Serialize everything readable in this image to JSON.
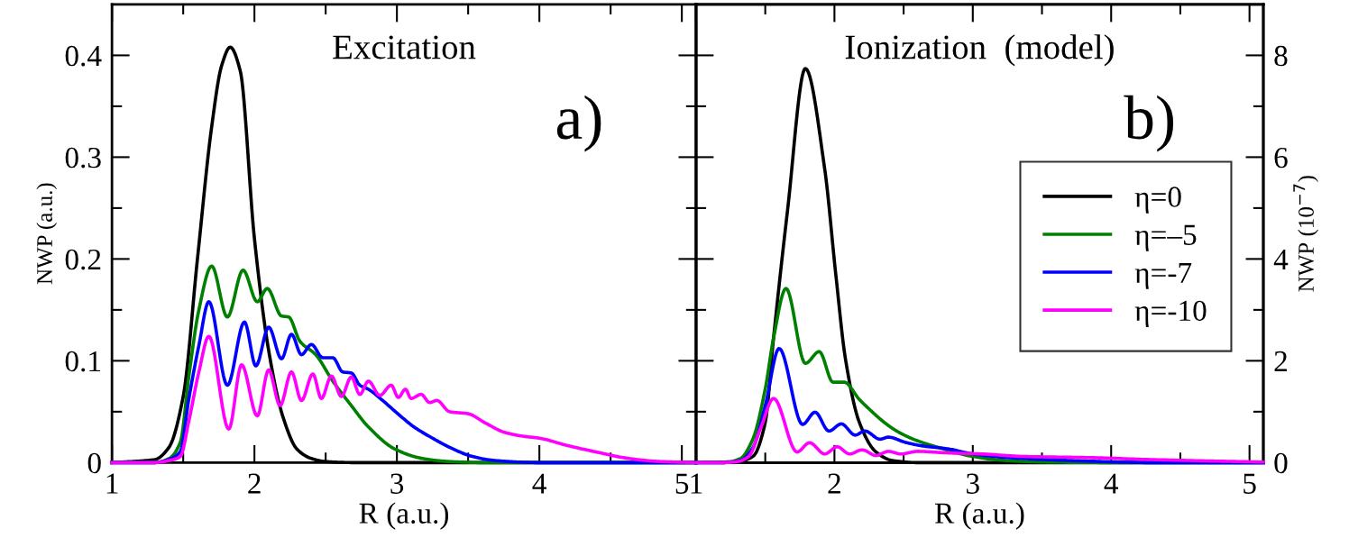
{
  "chart_data": [
    {
      "type": "line",
      "xlabel": "R (a.u.)",
      "ylabel": "NWP (a.u.)",
      "annotations": [
        "Excitation",
        "a)"
      ],
      "xlim": [
        1,
        5.1
      ],
      "xticks": [
        1,
        {
          "value": 1.5,
          "label": null
        },
        2,
        {
          "value": 2.5,
          "label": null
        },
        3,
        {
          "value": 3.5,
          "label": null
        },
        4,
        {
          "value": 4.5,
          "label": null
        },
        5
      ],
      "ylim": [
        0,
        0.45
      ],
      "yticks": [
        0,
        {
          "value": 0.05,
          "label": null
        },
        0.1,
        {
          "value": 0.15,
          "label": null
        },
        0.2,
        {
          "value": 0.25,
          "label": null
        },
        0.3,
        {
          "value": 0.35,
          "label": null
        },
        0.4
      ],
      "grid": false,
      "legend": false,
      "marker": "none",
      "line_style": "solid",
      "series": [
        {
          "color": "#000000",
          "x": [
            1,
            1.3,
            1.4,
            1.5,
            1.6,
            1.7,
            1.77,
            1.83,
            1.9,
            2.0,
            2.1,
            2.2,
            2.3,
            2.4,
            2.5,
            2.7,
            5.1
          ],
          "values": [
            0,
            0.003,
            0.015,
            0.065,
            0.2,
            0.33,
            0.39,
            0.408,
            0.385,
            0.22,
            0.11,
            0.045,
            0.013,
            0.004,
            0.001,
            0,
            0
          ]
        },
        {
          "color": "#008000",
          "x": [
            1,
            1.3,
            1.4,
            1.48,
            1.54,
            1.61,
            1.7,
            1.81,
            1.92,
            2.02,
            2.09,
            2.19,
            2.24,
            2.32,
            2.43,
            2.55,
            2.68,
            2.8,
            2.99,
            3.18,
            3.37,
            3.6,
            5.1
          ],
          "values": [
            0,
            0,
            0.004,
            0.02,
            0.085,
            0.15,
            0.193,
            0.143,
            0.189,
            0.158,
            0.171,
            0.144,
            0.143,
            0.119,
            0.106,
            0.08,
            0.056,
            0.035,
            0.013,
            0.004,
            0.001,
            0,
            0
          ]
        },
        {
          "color": "#0000ff",
          "x": [
            1,
            1.3,
            1.4,
            1.48,
            1.54,
            1.61,
            1.68,
            1.81,
            1.93,
            2.01,
            2.1,
            2.19,
            2.26,
            2.33,
            2.4,
            2.48,
            2.55,
            2.62,
            2.68,
            2.74,
            2.8,
            2.9,
            2.99,
            3.12,
            3.25,
            3.37,
            3.53,
            3.69,
            4.0,
            5.1
          ],
          "values": [
            0,
            0,
            0.003,
            0.011,
            0.063,
            0.115,
            0.158,
            0.076,
            0.138,
            0.095,
            0.133,
            0.102,
            0.126,
            0.106,
            0.116,
            0.103,
            0.103,
            0.089,
            0.088,
            0.076,
            0.072,
            0.061,
            0.05,
            0.035,
            0.024,
            0.015,
            0.006,
            0.002,
            0,
            0
          ]
        },
        {
          "color": "#ff00ff",
          "x": [
            1,
            1.3,
            1.4,
            1.48,
            1.54,
            1.61,
            1.68,
            1.82,
            1.91,
            2.02,
            2.1,
            2.18,
            2.26,
            2.33,
            2.41,
            2.47,
            2.54,
            2.61,
            2.68,
            2.74,
            2.8,
            2.88,
            2.96,
            3.01,
            3.06,
            3.1,
            3.17,
            3.23,
            3.28,
            3.37,
            3.5,
            3.62,
            3.75,
            3.88,
            4.0,
            4.19,
            4.38,
            4.63,
            4.85,
            5.1
          ],
          "values": [
            0,
            0,
            0.002,
            0.006,
            0.041,
            0.089,
            0.124,
            0.033,
            0.096,
            0.046,
            0.091,
            0.056,
            0.089,
            0.061,
            0.087,
            0.063,
            0.085,
            0.065,
            0.084,
            0.067,
            0.08,
            0.066,
            0.076,
            0.064,
            0.072,
            0.063,
            0.067,
            0.059,
            0.061,
            0.05,
            0.048,
            0.039,
            0.03,
            0.026,
            0.024,
            0.017,
            0.011,
            0.004,
            0.001,
            0
          ]
        }
      ]
    },
    {
      "type": "line",
      "xlabel": "R (a.u.)",
      "y2label": "NWP (10$^{−7}$)",
      "annotations": [
        "Ionization  (model)",
        "b)"
      ],
      "xlim": [
        1,
        5.1
      ],
      "xticks": [
        1,
        {
          "value": 1.5,
          "label": null
        },
        2,
        {
          "value": 2.5,
          "label": null
        },
        3,
        {
          "value": 3.5,
          "label": null
        },
        4,
        {
          "value": 4.5,
          "label": null
        },
        5
      ],
      "y2lim": [
        0,
        9
      ],
      "y2ticks": [
        0,
        {
          "value": 1,
          "label": null
        },
        2,
        {
          "value": 3,
          "label": null
        },
        4,
        {
          "value": 5,
          "label": null
        },
        6,
        {
          "value": 7,
          "label": null
        },
        8
      ],
      "grid": false,
      "legend": "right",
      "marker": "none",
      "line_style": "solid",
      "series": [
        {
          "name": "η=0",
          "axis": "y2",
          "color": "#000000",
          "x": [
            1,
            1.3,
            1.41,
            1.5,
            1.56,
            1.66,
            1.79,
            1.93,
            2.01,
            2.08,
            2.18,
            2.3,
            2.42,
            2.6,
            5.1
          ],
          "values": [
            0,
            0.02,
            0.12,
            0.79,
            2.45,
            4.93,
            7.74,
            5.76,
            3.69,
            2.03,
            0.79,
            0.21,
            0.04,
            0,
            0
          ]
        },
        {
          "name": "η=–5",
          "axis": "y2",
          "color": "#008000",
          "x": [
            1,
            1.2,
            1.32,
            1.41,
            1.5,
            1.56,
            1.65,
            1.79,
            1.89,
            1.99,
            2.07,
            2.18,
            2.24,
            2.36,
            2.45,
            2.57,
            2.76,
            3.0,
            3.24,
            3.52,
            4.0,
            5.1
          ],
          "values": [
            0,
            0,
            0.08,
            0.46,
            1.45,
            2.45,
            3.42,
            1.95,
            2.18,
            1.58,
            1.58,
            1.24,
            1.08,
            0.79,
            0.62,
            0.46,
            0.29,
            0.12,
            0.04,
            0.01,
            0,
            0
          ]
        },
        {
          "name": "η=-7",
          "axis": "y2",
          "color": "#0000ff",
          "x": [
            1,
            1.2,
            1.32,
            1.41,
            1.5,
            1.6,
            1.77,
            1.86,
            1.96,
            2.05,
            2.15,
            2.22,
            2.33,
            2.39,
            2.51,
            2.63,
            2.82,
            3.0,
            3.24,
            3.52,
            3.82,
            4.28,
            5.1
          ],
          "values": [
            0,
            0,
            0.04,
            0.29,
            1.12,
            2.24,
            0.75,
            0.99,
            0.62,
            0.76,
            0.54,
            0.62,
            0.46,
            0.5,
            0.4,
            0.33,
            0.27,
            0.17,
            0.1,
            0.06,
            0.03,
            0,
            0
          ]
        },
        {
          "name": "η=-10",
          "axis": "y2",
          "color": "#ff00ff",
          "x": [
            1,
            1.2,
            1.3,
            1.38,
            1.47,
            1.56,
            1.73,
            1.82,
            1.93,
            2.02,
            2.11,
            2.2,
            2.3,
            2.39,
            2.48,
            2.6,
            2.82,
            3.06,
            3.37,
            3.82,
            4.28,
            4.74,
            5.1
          ],
          "values": [
            0,
            0,
            0.02,
            0.12,
            0.7,
            1.26,
            0.21,
            0.39,
            0.17,
            0.31,
            0.17,
            0.25,
            0.14,
            0.22,
            0.17,
            0.22,
            0.19,
            0.17,
            0.12,
            0.1,
            0.06,
            0.03,
            0.01
          ]
        }
      ]
    }
  ]
}
